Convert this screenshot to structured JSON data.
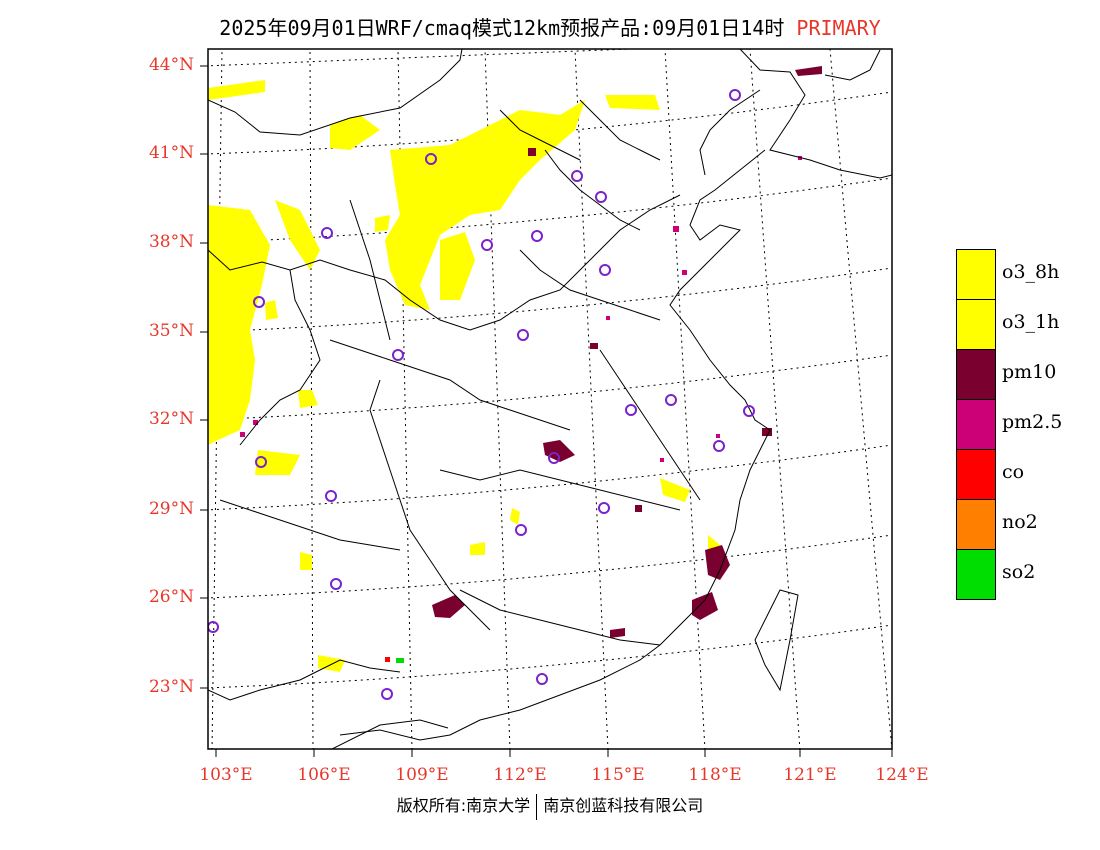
{
  "header": {
    "title": "2025年09月01日WRF/cmaq模式12km预报产品:09月01日14时",
    "tag": "PRIMARY"
  },
  "map": {
    "lat_labels": [
      "44°N",
      "41°N",
      "38°N",
      "35°N",
      "32°N",
      "29°N",
      "26°N",
      "23°N"
    ],
    "lon_labels": [
      "103°E",
      "106°E",
      "109°E",
      "112°E",
      "115°E",
      "118°E",
      "121°E",
      "124°E"
    ],
    "colors": {
      "o3_8h": "#ffff00",
      "o3_1h": "#ffff00",
      "pm10": "#7a0030",
      "pm2_5": "#cc0077",
      "co": "#ff0000",
      "no2": "#ff7f00",
      "so2": "#00dd00",
      "station": "#7a22cc",
      "axis_label": "#e8372a"
    }
  },
  "legend": {
    "items": [
      {
        "label": "o3_8h",
        "color": "#ffff00"
      },
      {
        "label": "o3_1h",
        "color": "#ffff00"
      },
      {
        "label": "pm10",
        "color": "#7a0030"
      },
      {
        "label": "pm2.5",
        "color": "#cc0077"
      },
      {
        "label": "co",
        "color": "#ff0000"
      },
      {
        "label": "no2",
        "color": "#ff7f00"
      },
      {
        "label": "so2",
        "color": "#00dd00"
      }
    ]
  },
  "footer": {
    "copyright_left": "版权所有:南京大学",
    "copyright_right": "南京创蓝科技有限公司"
  }
}
